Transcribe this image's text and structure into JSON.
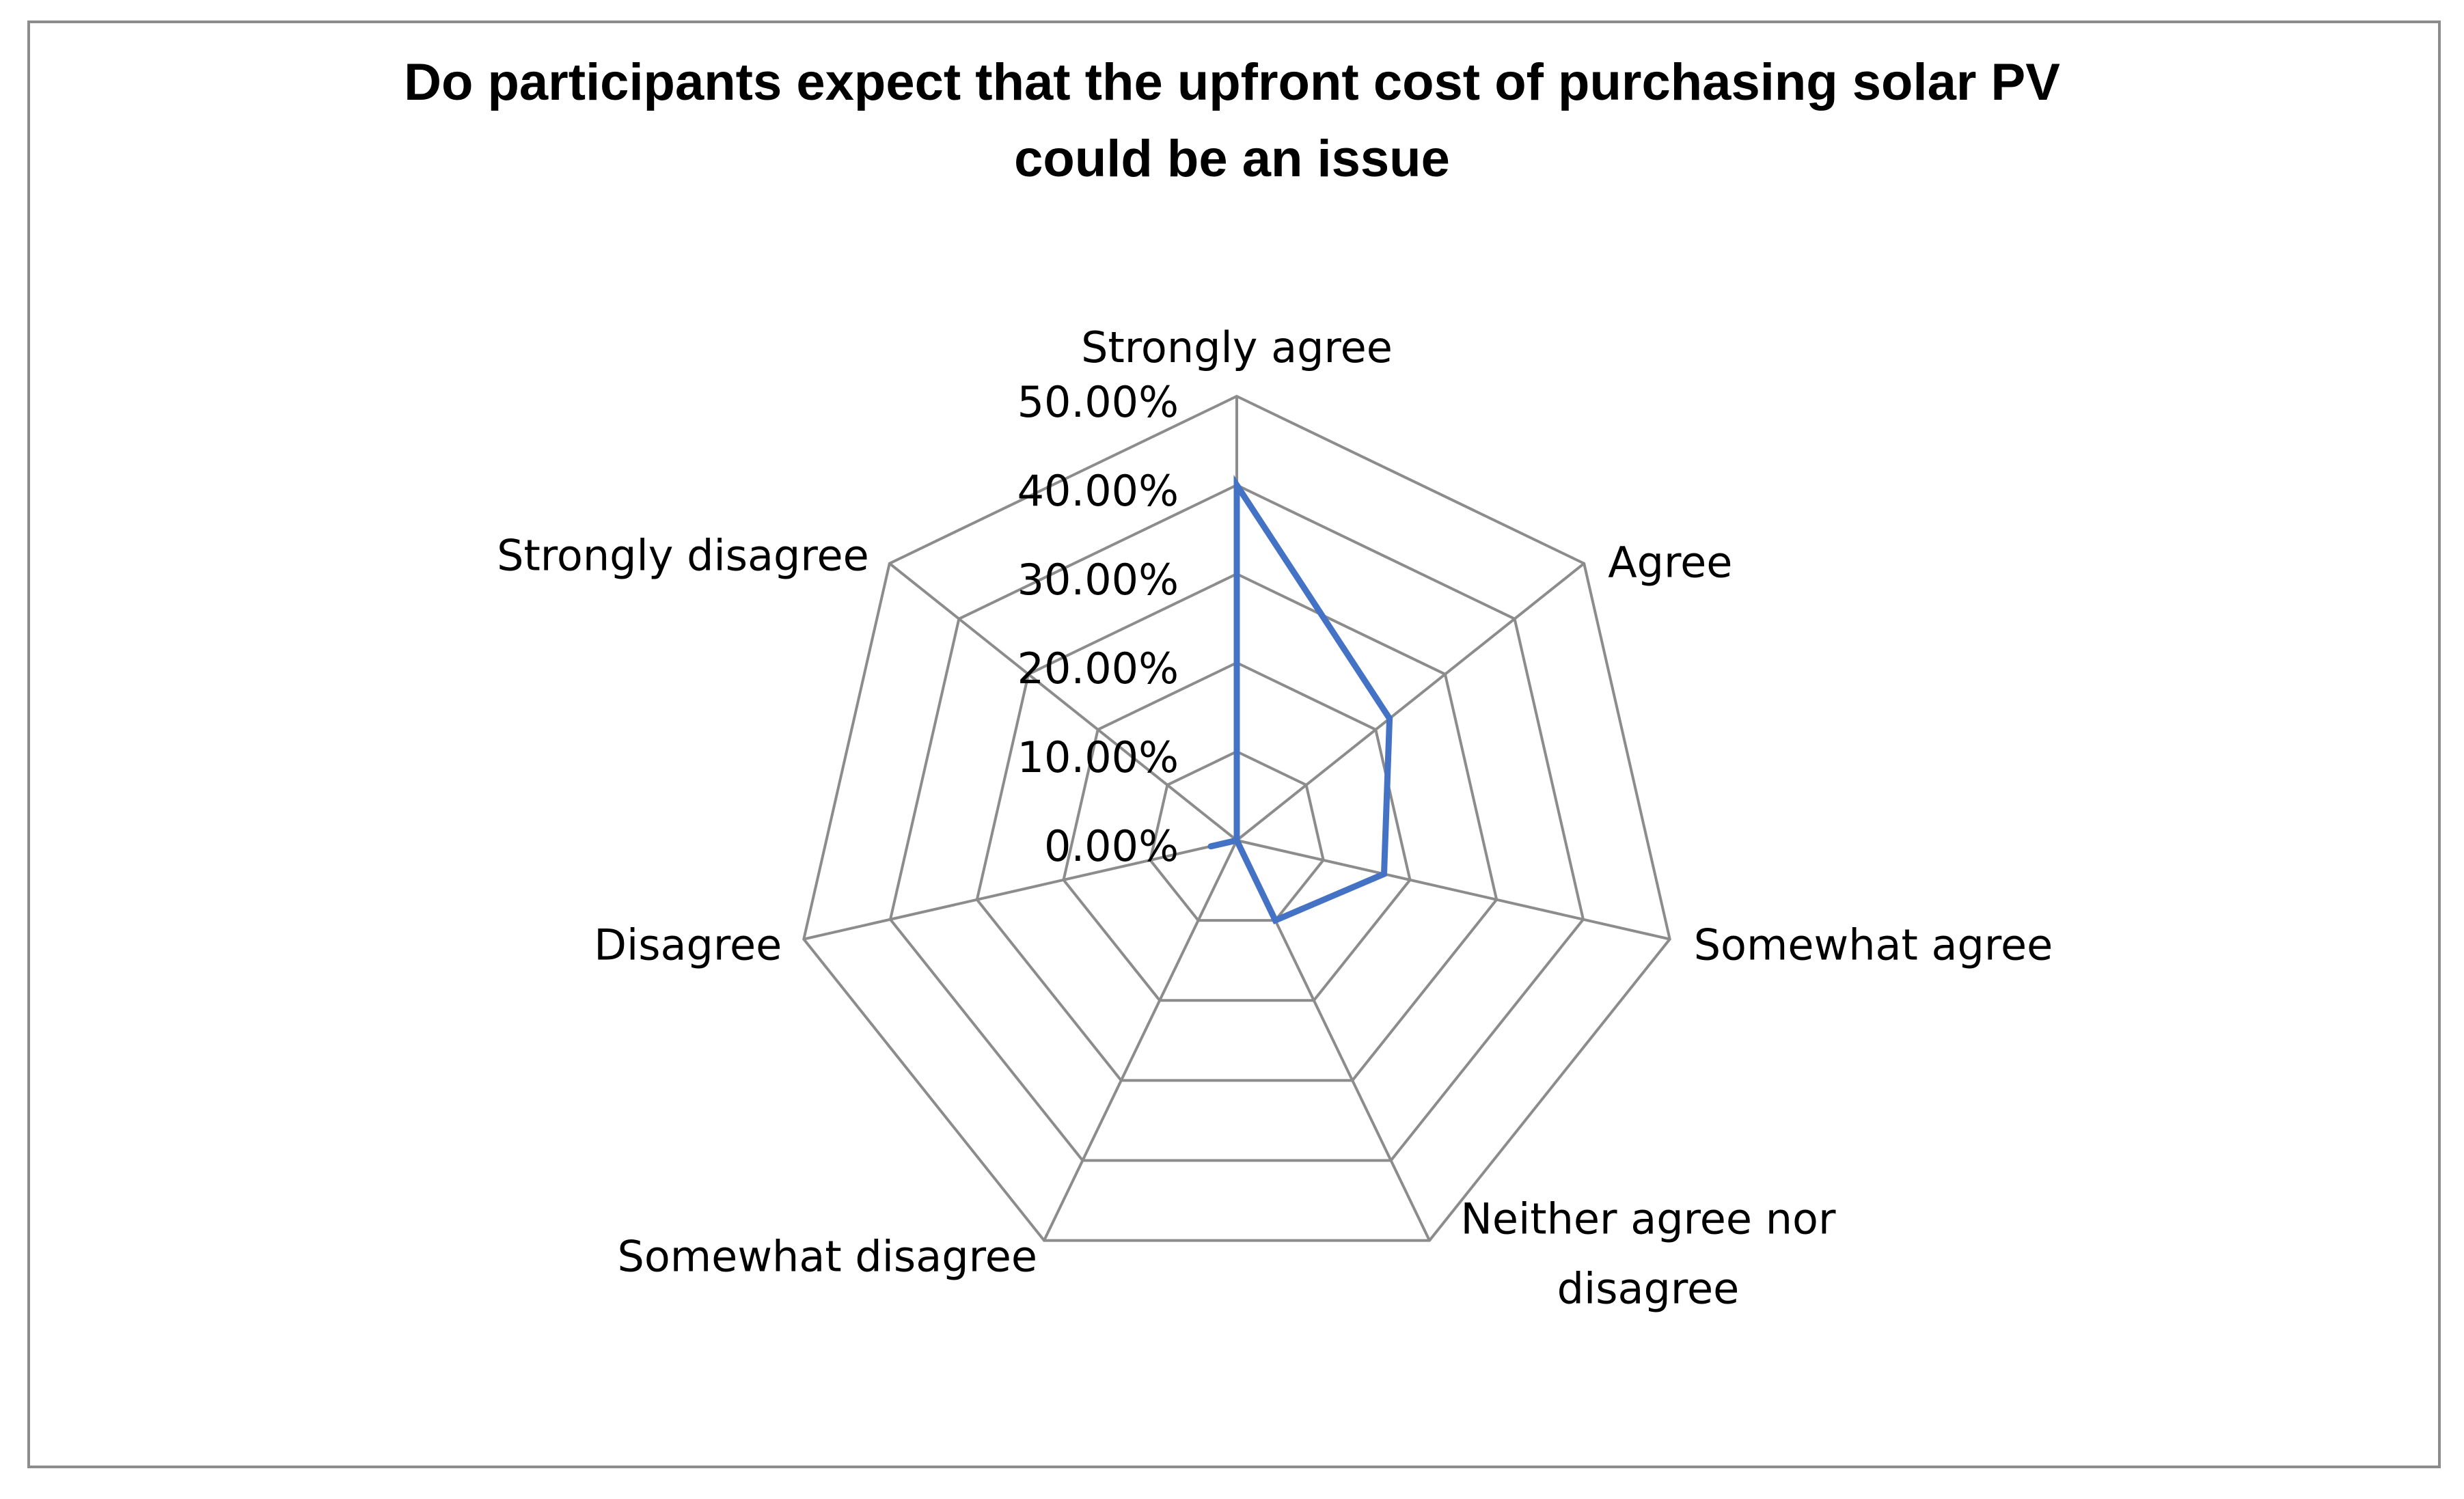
{
  "chart_data": {
    "type": "radar",
    "title_lines": [
      "Do participants expect that the upfront cost of purchasing solar PV",
      "could be an issue"
    ],
    "categories": [
      "Strongly agree",
      "Agree",
      "Somewhat agree",
      "Neither agree nor disagree",
      "Somewhat disagree",
      "Disagree",
      "Strongly disagree"
    ],
    "series": [
      {
        "values": [
          0.4,
          0.22,
          0.17,
          0.1,
          0.0,
          0.03,
          0.0
        ]
      }
    ],
    "rlim": [
      0,
      0.5
    ],
    "ticks": [
      0,
      0.1,
      0.2,
      0.3,
      0.4,
      0.5
    ],
    "tick_labels": [
      "0.00%",
      "10.00%",
      "20.00%",
      "30.00%",
      "40.00%",
      "50.00%"
    ],
    "grid": true,
    "legend": "none"
  },
  "colors": {
    "series": "#4472c4",
    "grid": "#8c8c8c"
  }
}
